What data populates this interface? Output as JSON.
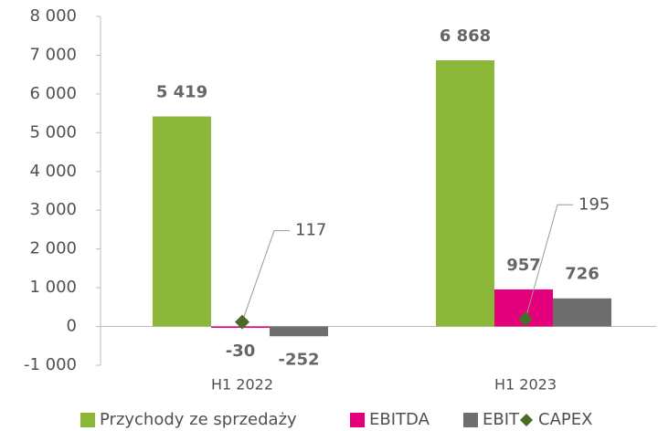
{
  "chart_data": {
    "type": "bar",
    "categories": [
      "H1 2022",
      "H1 2023"
    ],
    "series": [
      {
        "name": "Przychody ze sprzedaży",
        "color": "#8cb83a",
        "values": [
          5419,
          6868
        ],
        "value_labels": [
          "5 419",
          "6 868"
        ]
      },
      {
        "name": "EBITDA",
        "color": "#e4007c",
        "values": [
          -30,
          957
        ]
      },
      {
        "name": "EBIT",
        "color": "#6e6e6e",
        "values": [
          -252,
          726
        ]
      },
      {
        "name": "CAPEX",
        "type": "scatter",
        "color": "#4a6b25",
        "values": [
          117,
          195
        ]
      }
    ],
    "ylim": [
      -1000,
      8000
    ],
    "yticks": [
      {
        "value": -1000,
        "label": "-1 000"
      },
      0,
      {
        "value": 1000,
        "label": "1 000"
      },
      {
        "value": 2000,
        "label": "2 000"
      },
      {
        "value": 3000,
        "label": "3 000"
      },
      {
        "value": 4000,
        "label": "4 000"
      },
      {
        "value": 5000,
        "label": "5 000"
      },
      {
        "value": 6000,
        "label": "6 000"
      },
      {
        "value": 7000,
        "label": "7 000"
      },
      {
        "value": 8000,
        "label": "8 000"
      }
    ],
    "legend": "bottom"
  }
}
